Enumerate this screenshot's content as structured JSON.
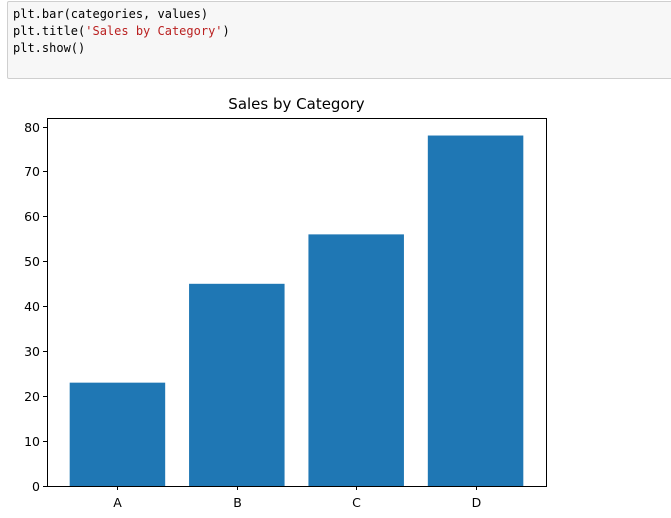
{
  "code_cell": {
    "lines": [
      {
        "parts": [
          {
            "text": "plt.bar(categories, values)",
            "kind": "code"
          }
        ]
      },
      {
        "parts": [
          {
            "text": "plt.title(",
            "kind": "code"
          },
          {
            "text": "'Sales by Category'",
            "kind": "string"
          },
          {
            "text": ")",
            "kind": "code"
          }
        ]
      },
      {
        "parts": [
          {
            "text": "plt.show()",
            "kind": "code"
          }
        ]
      }
    ],
    "string_color": "#ba2121"
  },
  "chart_data": {
    "type": "bar",
    "title": "Sales by Category",
    "categories": [
      "A",
      "B",
      "C",
      "D"
    ],
    "values": [
      23,
      45,
      56,
      78
    ],
    "xlabel": "",
    "ylabel": "",
    "ylim": [
      0,
      81.9
    ],
    "yticks": [
      0,
      10,
      20,
      30,
      40,
      50,
      60,
      70,
      80
    ],
    "grid": false,
    "bar_color": "#1f77b4"
  }
}
